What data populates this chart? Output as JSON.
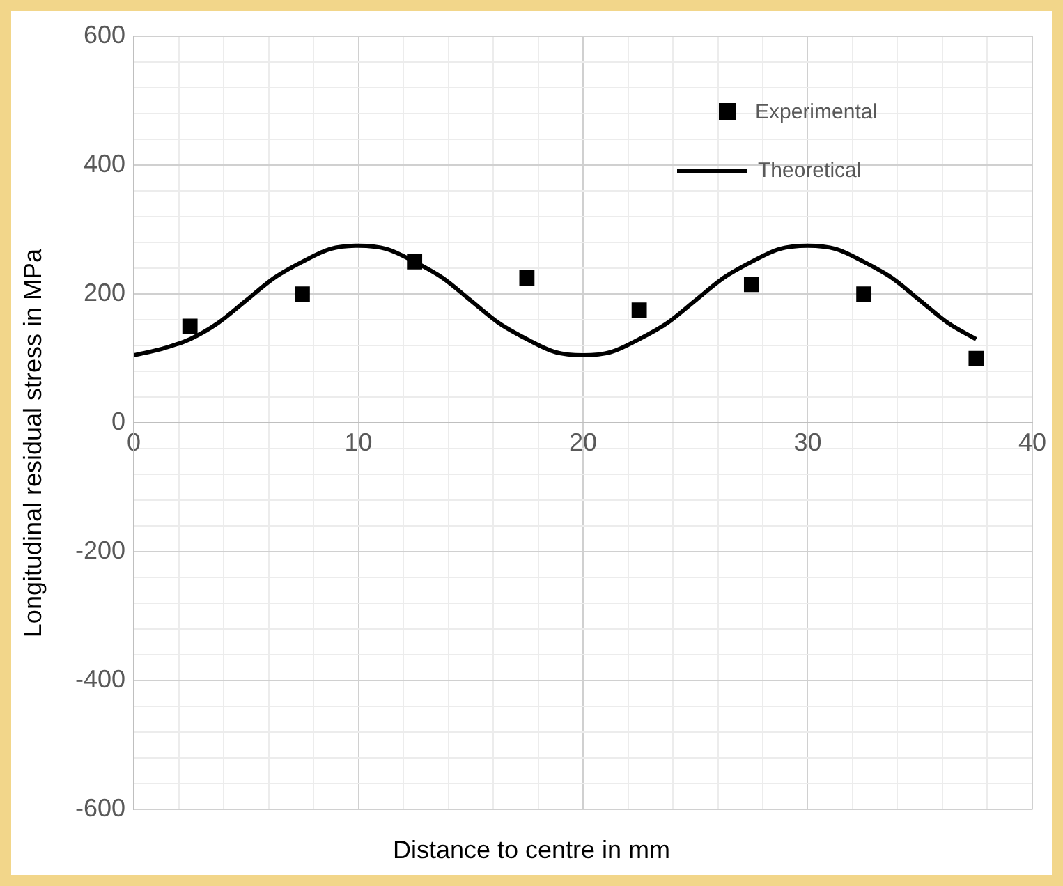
{
  "chart_data": {
    "type": "scatter",
    "xlabel": "Distance to centre in mm",
    "ylabel": "Longitudinal residual stress in MPa",
    "xlim": [
      0,
      40
    ],
    "ylim": [
      -600,
      600
    ],
    "xticks": [
      0,
      {
        "value": 2,
        "label": null
      },
      {
        "value": 4,
        "label": null
      },
      {
        "value": 6,
        "label": null
      },
      {
        "value": 8,
        "label": null
      },
      10,
      {
        "value": 12,
        "label": null
      },
      {
        "value": 14,
        "label": null
      },
      {
        "value": 16,
        "label": null
      },
      {
        "value": 18,
        "label": null
      },
      20,
      {
        "value": 22,
        "label": null
      },
      {
        "value": 24,
        "label": null
      },
      {
        "value": 26,
        "label": null
      },
      {
        "value": 28,
        "label": null
      },
      30,
      {
        "value": 32,
        "label": null
      },
      {
        "value": 34,
        "label": null
      },
      {
        "value": 36,
        "label": null
      },
      {
        "value": 38,
        "label": null
      },
      40
    ],
    "yticks": [
      -600,
      {
        "value": -560,
        "label": null
      },
      {
        "value": -520,
        "label": null
      },
      {
        "value": -480,
        "label": null
      },
      {
        "value": -440,
        "label": null
      },
      -400,
      {
        "value": -360,
        "label": null
      },
      {
        "value": -320,
        "label": null
      },
      {
        "value": -280,
        "label": null
      },
      {
        "value": -240,
        "label": null
      },
      -200,
      {
        "value": -160,
        "label": null
      },
      {
        "value": -120,
        "label": null
      },
      {
        "value": -80,
        "label": null
      },
      {
        "value": -40,
        "label": null
      },
      0,
      {
        "value": 40,
        "label": null
      },
      {
        "value": 80,
        "label": null
      },
      {
        "value": 120,
        "label": null
      },
      {
        "value": 160,
        "label": null
      },
      200,
      {
        "value": 240,
        "label": null
      },
      {
        "value": 280,
        "label": null
      },
      {
        "value": 320,
        "label": null
      },
      {
        "value": 360,
        "label": null
      },
      400,
      {
        "value": 440,
        "label": null
      },
      {
        "value": 480,
        "label": null
      },
      {
        "value": 520,
        "label": null
      },
      {
        "value": 560,
        "label": null
      },
      600
    ],
    "grid": true,
    "legend": "top right",
    "series": [
      {
        "name": "Experimental",
        "type": "scatter",
        "marker": "square",
        "color": "#000000",
        "x": [
          2.5,
          7.5,
          12.5,
          17.5,
          22.5,
          27.5,
          32.5,
          37.5
        ],
        "values": [
          150,
          200,
          250,
          225,
          175,
          215,
          200,
          100
        ]
      },
      {
        "name": "Theoretical",
        "type": "line",
        "marker": "none",
        "line_style": "solid",
        "color": "#000000",
        "x": [
          0,
          1.25,
          2.5,
          3.75,
          5,
          6.25,
          7.5,
          8.75,
          10,
          11.25,
          12.5,
          13.75,
          15,
          16.25,
          17.5,
          18.75,
          20,
          21.25,
          22.5,
          23.75,
          25,
          26.25,
          27.5,
          28.75,
          30,
          31.25,
          32.5,
          33.75,
          35,
          36.25,
          37.5
        ],
        "values": [
          105,
          115,
          130,
          155,
          190,
          225,
          250,
          270,
          275,
          270,
          250,
          225,
          190,
          155,
          130,
          110,
          105,
          110,
          130,
          155,
          190,
          225,
          250,
          270,
          275,
          270,
          250,
          225,
          190,
          155,
          130
        ]
      }
    ]
  }
}
